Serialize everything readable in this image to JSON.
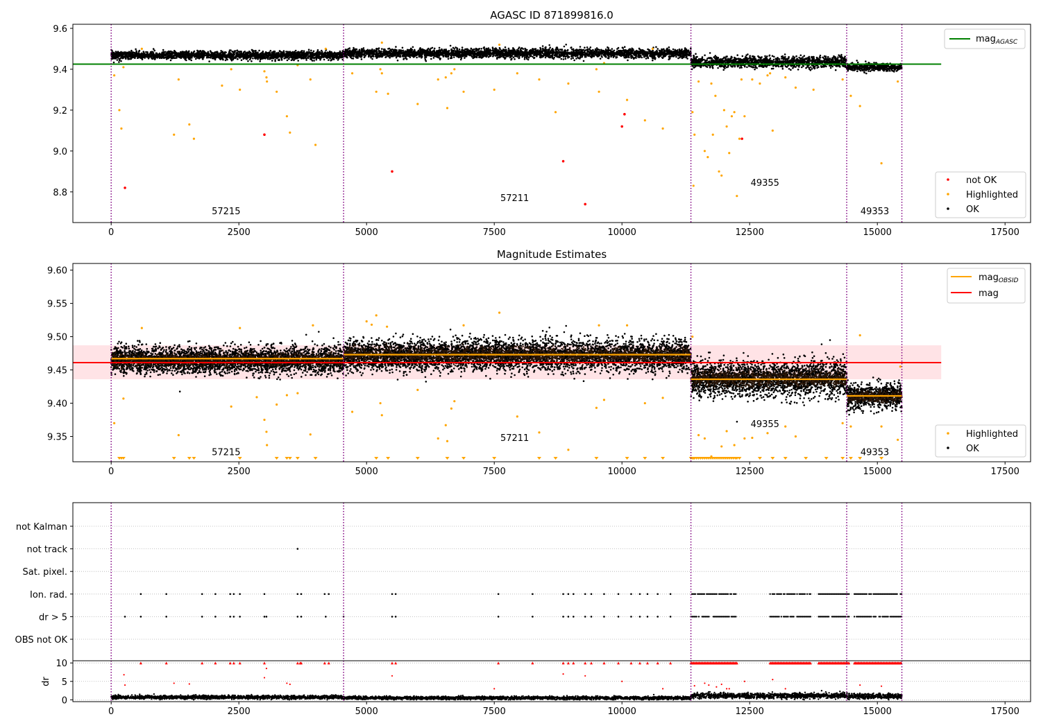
{
  "colors": {
    "ok": "#000000",
    "not_ok": "#ff0000",
    "highlighted": "#ffa500",
    "mag_agasc": "#008000",
    "mag_obsid": "#ffa500",
    "mag": "#ff0000",
    "band": "#ffc0c8",
    "obsid_line": "#800080",
    "dense_mid": "#2a1608"
  },
  "chart_data": [
    {
      "type": "scatter",
      "name": "agasc-panel",
      "title": "AGASC ID 871899816.0",
      "xlim": [
        -750,
        18000
      ],
      "ylim": [
        8.65,
        9.62
      ],
      "xticks": [
        0,
        2500,
        5000,
        7500,
        10000,
        12500,
        15000,
        17500
      ],
      "xtick_labels": [
        "0",
        "2500",
        "5000",
        "7500",
        "10000",
        "12500",
        "15000",
        "17500"
      ],
      "yticks": [
        8.8,
        9.0,
        9.2,
        9.4,
        9.6
      ],
      "ytick_labels": [
        "8.8",
        "9.0",
        "9.2",
        "9.4",
        "9.6"
      ],
      "obsid_boundaries": [
        0,
        4550,
        11350,
        14400,
        15480
      ],
      "obsid_labels": [
        {
          "text": "57215",
          "x": 2250,
          "y": 8.69
        },
        {
          "text": "57211",
          "x": 7900,
          "y": 8.755
        },
        {
          "text": "49355",
          "x": 12800,
          "y": 8.83
        },
        {
          "text": "49353",
          "x": 14950,
          "y": 8.69
        }
      ],
      "mag_agasc_line": {
        "y": 9.425,
        "x": [
          -750,
          16250
        ]
      },
      "legend_top": {
        "placement": "top-right",
        "entries": [
          {
            "label": "mag",
            "sub": "AGASC"
          }
        ]
      },
      "legend_bottom": {
        "placement": "bottom-right",
        "entries": [
          "not OK",
          "Highlighted",
          "OK"
        ]
      },
      "ok_segments": [
        {
          "x0": 0,
          "x1": 4550,
          "center": 9.468,
          "spread": 0.022
        },
        {
          "x0": 4550,
          "x1": 11350,
          "center": 9.478,
          "spread": 0.025
        },
        {
          "x0": 11350,
          "x1": 14400,
          "center": 9.435,
          "spread": 0.03
        },
        {
          "x0": 14400,
          "x1": 15480,
          "center": 9.41,
          "spread": 0.02
        }
      ],
      "highlighted": [
        [
          60,
          9.37
        ],
        [
          160,
          9.2
        ],
        [
          200,
          9.11
        ],
        [
          240,
          9.41
        ],
        [
          600,
          9.5
        ],
        [
          1230,
          9.08
        ],
        [
          1320,
          9.35
        ],
        [
          1530,
          9.13
        ],
        [
          1620,
          9.06
        ],
        [
          2170,
          9.32
        ],
        [
          2350,
          9.4
        ],
        [
          2520,
          9.3
        ],
        [
          3000,
          9.39
        ],
        [
          3040,
          9.36
        ],
        [
          3050,
          9.34
        ],
        [
          3240,
          9.29
        ],
        [
          3440,
          9.17
        ],
        [
          3500,
          9.09
        ],
        [
          3650,
          9.42
        ],
        [
          3900,
          9.35
        ],
        [
          4000,
          9.03
        ],
        [
          4200,
          9.5
        ],
        [
          4720,
          9.38
        ],
        [
          5190,
          9.29
        ],
        [
          5270,
          9.4
        ],
        [
          5300,
          9.38
        ],
        [
          5420,
          9.28
        ],
        [
          5300,
          9.53
        ],
        [
          6000,
          9.23
        ],
        [
          6400,
          9.35
        ],
        [
          6550,
          9.36
        ],
        [
          6580,
          9.21
        ],
        [
          6660,
          9.38
        ],
        [
          6720,
          9.4
        ],
        [
          6900,
          9.29
        ],
        [
          7500,
          9.3
        ],
        [
          7600,
          9.52
        ],
        [
          7950,
          9.38
        ],
        [
          8380,
          9.35
        ],
        [
          8700,
          9.19
        ],
        [
          8950,
          9.33
        ],
        [
          9500,
          9.4
        ],
        [
          9550,
          9.29
        ],
        [
          9650,
          9.43
        ],
        [
          10100,
          9.25
        ],
        [
          10450,
          9.15
        ],
        [
          10600,
          9.5
        ],
        [
          10800,
          9.11
        ],
        [
          11380,
          9.19
        ],
        [
          11420,
          9.08
        ],
        [
          11400,
          8.83
        ],
        [
          11500,
          9.34
        ],
        [
          11620,
          9.0
        ],
        [
          11680,
          8.97
        ],
        [
          11750,
          9.33
        ],
        [
          11780,
          9.08
        ],
        [
          11830,
          9.27
        ],
        [
          11900,
          8.9
        ],
        [
          11950,
          8.88
        ],
        [
          12000,
          9.2
        ],
        [
          12050,
          9.12
        ],
        [
          12100,
          8.99
        ],
        [
          12150,
          9.17
        ],
        [
          12200,
          9.19
        ],
        [
          12300,
          9.06
        ],
        [
          12340,
          9.35
        ],
        [
          12400,
          9.17
        ],
        [
          12550,
          9.35
        ],
        [
          12700,
          9.33
        ],
        [
          12850,
          9.37
        ],
        [
          12900,
          9.38
        ],
        [
          12950,
          9.1
        ],
        [
          12250,
          8.78
        ],
        [
          13200,
          9.36
        ],
        [
          13400,
          9.31
        ],
        [
          13750,
          9.3
        ],
        [
          14320,
          9.35
        ],
        [
          14480,
          9.27
        ],
        [
          14660,
          9.22
        ],
        [
          15080,
          8.94
        ],
        [
          15400,
          9.34
        ]
      ],
      "not_ok": [
        [
          270,
          8.82
        ],
        [
          3000,
          9.08
        ],
        [
          5500,
          8.9
        ],
        [
          8850,
          8.95
        ],
        [
          9280,
          8.74
        ],
        [
          10000,
          9.12
        ],
        [
          10050,
          9.18
        ],
        [
          12350,
          9.06
        ]
      ]
    },
    {
      "type": "scatter",
      "name": "estimates-panel",
      "title": "Magnitude Estimates",
      "xlim": [
        -750,
        18000
      ],
      "ylim": [
        9.312,
        9.61
      ],
      "xticks": [
        0,
        2500,
        5000,
        7500,
        10000,
        12500,
        15000,
        17500
      ],
      "xtick_labels": [
        "0",
        "2500",
        "5000",
        "7500",
        "10000",
        "12500",
        "15000",
        "17500"
      ],
      "yticks": [
        9.35,
        9.4,
        9.45,
        9.5,
        9.55,
        9.6
      ],
      "ytick_labels": [
        "9.35",
        "9.40",
        "9.45",
        "9.50",
        "9.55",
        "9.60"
      ],
      "obsid_boundaries": [
        0,
        4550,
        11350,
        14400,
        15480
      ],
      "obsid_labels": [
        {
          "text": "57215",
          "x": 2250,
          "y": 9.322
        },
        {
          "text": "57211",
          "x": 7900,
          "y": 9.343
        },
        {
          "text": "49355",
          "x": 12800,
          "y": 9.364
        },
        {
          "text": "49353",
          "x": 14950,
          "y": 9.322
        }
      ],
      "mag_line": {
        "y": 9.461,
        "x": [
          -750,
          16250
        ]
      },
      "mag_band": [
        9.436,
        9.487
      ],
      "obsid_mags": [
        {
          "x0": 0,
          "x1": 4550,
          "y": 9.467
        },
        {
          "x0": 4550,
          "x1": 11350,
          "y": 9.473
        },
        {
          "x0": 11350,
          "x1": 14400,
          "y": 9.436
        },
        {
          "x0": 14400,
          "x1": 15480,
          "y": 9.411
        }
      ],
      "legend_top": {
        "placement": "top-right",
        "entries": [
          {
            "label": "mag",
            "sub": "OBSID"
          },
          {
            "label": "mag",
            "sub": ""
          }
        ]
      },
      "legend_bottom": {
        "placement": "bottom-right",
        "entries": [
          "Highlighted",
          "OK"
        ]
      },
      "ok_segments": [
        {
          "x0": 0,
          "x1": 4550,
          "center": 9.465,
          "spread": 0.022
        },
        {
          "x0": 4550,
          "x1": 11350,
          "center": 9.472,
          "spread": 0.026
        },
        {
          "x0": 11350,
          "x1": 14400,
          "center": 9.437,
          "spread": 0.03
        },
        {
          "x0": 14400,
          "x1": 15480,
          "center": 9.41,
          "spread": 0.02
        }
      ],
      "highlighted": [
        [
          60,
          9.37
        ],
        [
          240,
          9.407
        ],
        [
          600,
          9.513
        ],
        [
          1320,
          9.352
        ],
        [
          2350,
          9.395
        ],
        [
          2520,
          9.513
        ],
        [
          2850,
          9.409
        ],
        [
          3000,
          9.375
        ],
        [
          3040,
          9.357
        ],
        [
          3050,
          9.337
        ],
        [
          3240,
          9.398
        ],
        [
          3440,
          9.412
        ],
        [
          3650,
          9.415
        ],
        [
          3900,
          9.353
        ],
        [
          3950,
          9.517
        ],
        [
          4720,
          9.387
        ],
        [
          5000,
          9.523
        ],
        [
          5100,
          9.518
        ],
        [
          5190,
          9.532
        ],
        [
          5270,
          9.4
        ],
        [
          5300,
          9.382
        ],
        [
          5400,
          9.515
        ],
        [
          6000,
          9.42
        ],
        [
          6400,
          9.347
        ],
        [
          6550,
          9.367
        ],
        [
          6580,
          9.343
        ],
        [
          6660,
          9.392
        ],
        [
          6720,
          9.403
        ],
        [
          6900,
          9.517
        ],
        [
          7600,
          9.536
        ],
        [
          7950,
          9.38
        ],
        [
          8380,
          9.356
        ],
        [
          8950,
          9.33
        ],
        [
          9500,
          9.393
        ],
        [
          9550,
          9.517
        ],
        [
          9650,
          9.405
        ],
        [
          10100,
          9.517
        ],
        [
          10450,
          9.4
        ],
        [
          10800,
          9.408
        ],
        [
          11380,
          9.5
        ],
        [
          11500,
          9.352
        ],
        [
          11620,
          9.347
        ],
        [
          11750,
          9.32
        ],
        [
          11950,
          9.335
        ],
        [
          12050,
          9.358
        ],
        [
          12200,
          9.337
        ],
        [
          12400,
          9.347
        ],
        [
          12550,
          9.348
        ],
        [
          12850,
          9.355
        ],
        [
          13200,
          9.365
        ],
        [
          13400,
          9.35
        ],
        [
          14320,
          9.37
        ],
        [
          14480,
          9.365
        ],
        [
          14660,
          9.502
        ],
        [
          15080,
          9.365
        ],
        [
          15400,
          9.345
        ],
        [
          15450,
          9.455
        ]
      ],
      "clipped_low": [
        160,
        200,
        240,
        1230,
        1530,
        1620,
        2520,
        3240,
        3440,
        3500,
        3650,
        4000,
        5190,
        5420,
        6000,
        6580,
        6900,
        7500,
        8380,
        8700,
        9500,
        10100,
        10450,
        10800,
        11350,
        11380,
        11400,
        11420,
        11460,
        11500,
        11540,
        11580,
        11620,
        11660,
        11700,
        11740,
        11780,
        11820,
        11860,
        11900,
        11940,
        11980,
        12020,
        12060,
        12100,
        12140,
        12180,
        12220,
        12250,
        12300,
        12700,
        12950,
        13200,
        13600,
        14000,
        14320,
        14480,
        14660,
        15080
      ]
    },
    {
      "type": "scatter",
      "name": "flags-panel",
      "xlim": [
        -750,
        18000
      ],
      "categories": [
        "not Kalman",
        "not track",
        "Sat. pixel.",
        "Ion. rad.",
        "dr > 5",
        "OBS not OK"
      ],
      "obsid_boundaries": [
        0,
        4550,
        11350,
        14400,
        15480
      ],
      "flags": [
        {
          "category": "not track",
          "x": [
            3650
          ]
        },
        {
          "category": "Ion. rad.",
          "x": [
            580,
            1080,
            1780,
            2040,
            2330,
            2400,
            2520,
            3000,
            3650,
            3720,
            4180,
            4260,
            5500,
            5570,
            7580,
            8250,
            8850,
            8950,
            9050,
            9280,
            9400,
            9650,
            9930,
            10180,
            10350,
            10500,
            10700,
            10950
          ]
        },
        {
          "category": "dr > 5",
          "x": [
            270,
            580,
            1080,
            1780,
            2040,
            2330,
            2400,
            2520,
            3000,
            3040,
            3650,
            3720,
            4200,
            4550,
            5500,
            5570,
            7580,
            8250,
            8850,
            8950,
            9050,
            9280,
            9400,
            9650,
            9930,
            10180,
            10350,
            10500,
            10700,
            10950
          ]
        }
      ],
      "dense_ranges": [
        [
          11350,
          12250
        ],
        [
          12900,
          13700
        ],
        [
          13850,
          14450
        ],
        [
          14550,
          15480
        ]
      ]
    },
    {
      "type": "scatter",
      "name": "dr-panel",
      "ylabel": "dr",
      "xlim": [
        -750,
        18000
      ],
      "ylim": [
        -0.5,
        10.6
      ],
      "xticks": [
        0,
        2500,
        5000,
        7500,
        10000,
        12500,
        15000,
        17500
      ],
      "xtick_labels": [
        "0",
        "2500",
        "5000",
        "7500",
        "10000",
        "12500",
        "15000",
        "17500"
      ],
      "yticks": [
        0,
        5,
        10
      ],
      "ytick_labels": [
        "0",
        "5",
        "10"
      ],
      "obsid_boundaries": [
        0,
        4550,
        11350,
        14400,
        15480
      ],
      "ok_segments": [
        {
          "x0": 0,
          "x1": 4550,
          "center": 0.7,
          "spread": 0.4
        },
        {
          "x0": 4550,
          "x1": 11350,
          "center": 0.5,
          "spread": 0.35
        },
        {
          "x0": 11350,
          "x1": 14400,
          "center": 1.1,
          "spread": 0.6
        },
        {
          "x0": 14400,
          "x1": 15480,
          "center": 1.0,
          "spread": 0.6
        }
      ],
      "clipped_high": [
        580,
        1080,
        1780,
        2040,
        2330,
        2400,
        2520,
        3000,
        3650,
        3700,
        3720,
        4180,
        4260,
        5500,
        5570,
        7580,
        8250,
        8850,
        8950,
        9050,
        9280,
        9400,
        9650,
        9930,
        10180,
        10350,
        10500,
        10700,
        10950
      ],
      "dense_clipped_ranges": [
        [
          11350,
          12250
        ],
        [
          12900,
          13700
        ],
        [
          13850,
          14450
        ],
        [
          14550,
          15480
        ]
      ],
      "red_points": [
        [
          250,
          6.8
        ],
        [
          270,
          4.0
        ],
        [
          1230,
          4.5
        ],
        [
          1530,
          4.3
        ],
        [
          3000,
          6.0
        ],
        [
          3040,
          8.5
        ],
        [
          3440,
          4.5
        ],
        [
          3500,
          4.2
        ],
        [
          5500,
          6.5
        ],
        [
          7500,
          3.0
        ],
        [
          8850,
          7.0
        ],
        [
          9280,
          6.5
        ],
        [
          10000,
          5.0
        ],
        [
          10800,
          3.0
        ],
        [
          11420,
          3.8
        ],
        [
          11620,
          4.5
        ],
        [
          11700,
          4.0
        ],
        [
          11850,
          3.5
        ],
        [
          11950,
          4.2
        ],
        [
          12050,
          3.0
        ],
        [
          12100,
          3.0
        ],
        [
          12400,
          5.0
        ],
        [
          12950,
          5.5
        ],
        [
          13200,
          3.0
        ],
        [
          14660,
          4.0
        ],
        [
          15080,
          3.7
        ]
      ]
    }
  ]
}
